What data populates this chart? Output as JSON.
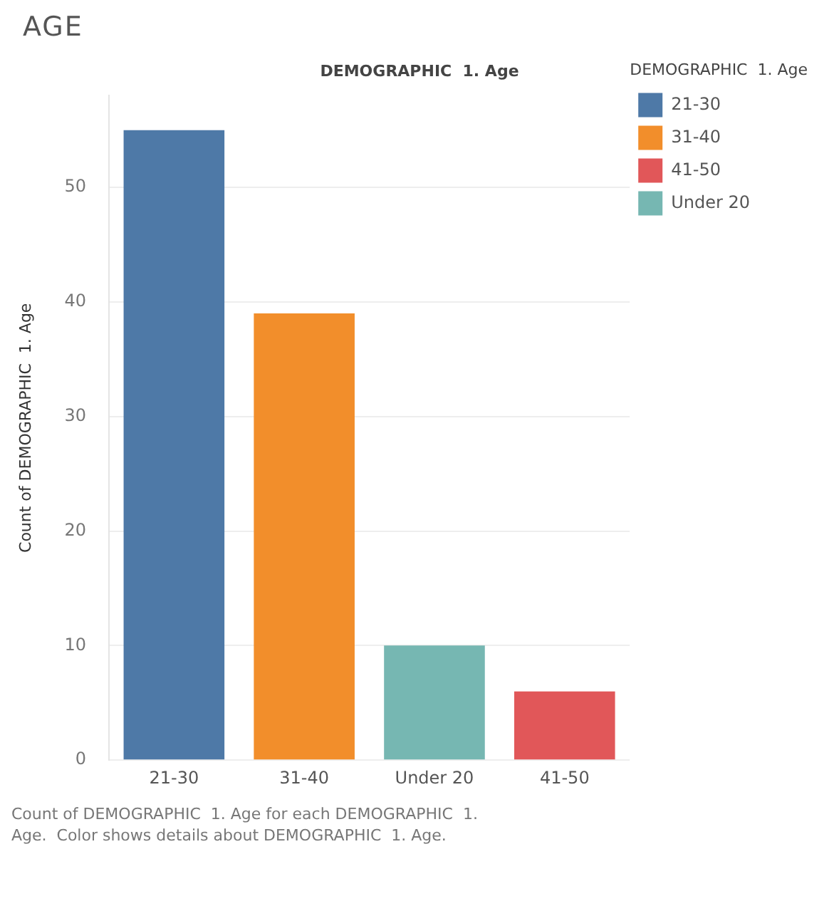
{
  "chart_data": {
    "type": "bar",
    "title": "AGE",
    "xlabel": "DEMOGRAPHIC  1. Age",
    "ylabel": "Count of DEMOGRAPHIC  1. Age",
    "legend_title": "DEMOGRAPHIC  1. Age",
    "categories": [
      "21-30",
      "31-40",
      "Under 20",
      "41-50"
    ],
    "series": [
      {
        "name": "21-30",
        "color": "#4e79a7",
        "values": [
          55,
          null,
          null,
          null
        ]
      },
      {
        "name": "31-40",
        "color": "#f28e2b",
        "values": [
          null,
          39,
          null,
          null
        ]
      },
      {
        "name": "41-50",
        "color": "#e15759",
        "values": [
          null,
          null,
          null,
          6
        ]
      },
      {
        "name": "Under 20",
        "color": "#76b7b2",
        "values": [
          null,
          null,
          10,
          null
        ]
      }
    ],
    "ylim": [
      0,
      58
    ],
    "yticks": [
      0,
      10,
      20,
      30,
      40,
      50
    ],
    "grid": "y",
    "legend": "top right",
    "annotations": [
      "Count of DEMOGRAPHIC  1. Age for each DEMOGRAPHIC  1. Age.  Color shows details about DEMOGRAPHIC  1. Age."
    ]
  }
}
